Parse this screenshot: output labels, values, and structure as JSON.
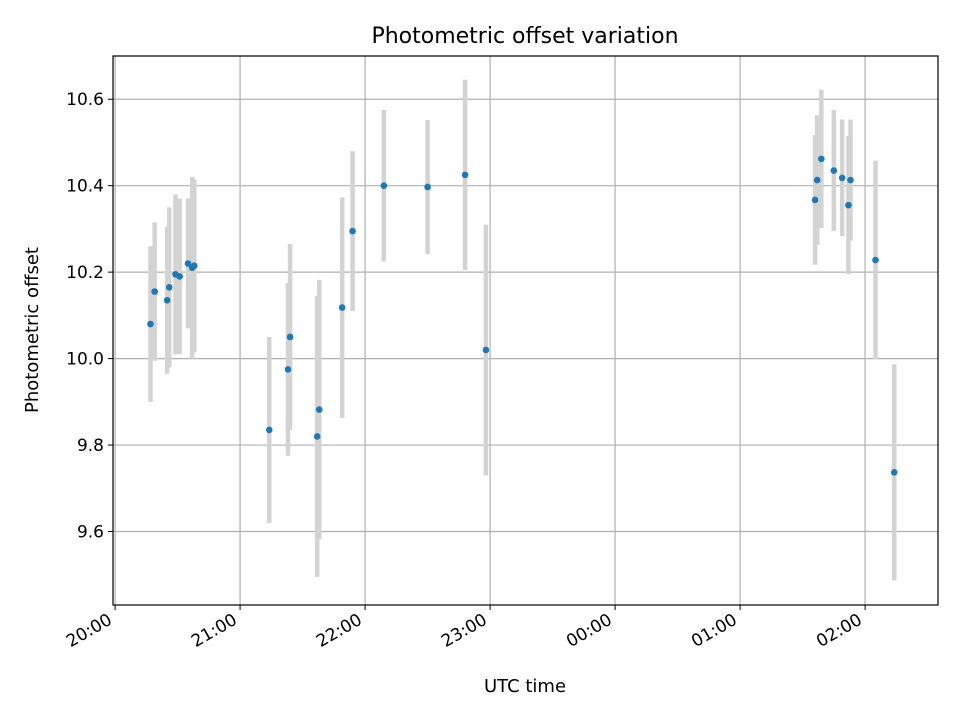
{
  "chart_data": {
    "type": "scatter",
    "title": "Photometric offset variation",
    "xlabel": "UTC time",
    "ylabel": "Photometric offset",
    "x_tick_labels": [
      "20:00",
      "21:00",
      "22:00",
      "23:00",
      "00:00",
      "01:00",
      "02:00"
    ],
    "y_tick_labels": [
      "9.6",
      "9.8",
      "10.0",
      "10.2",
      "10.4",
      "10.6"
    ],
    "xlim": [
      "19:59",
      "02:35"
    ],
    "ylim": [
      9.43,
      10.7
    ],
    "grid": true,
    "point_color": "#1f77b4",
    "errorbar_color": "#d3d3d3",
    "series": [
      {
        "points": [
          {
            "x": "20:17",
            "y": 10.08,
            "err": 0.18
          },
          {
            "x": "20:19",
            "y": 10.155,
            "err": 0.16
          },
          {
            "x": "20:25",
            "y": 10.135,
            "err": 0.17
          },
          {
            "x": "20:26",
            "y": 10.165,
            "err": 0.185
          },
          {
            "x": "20:29",
            "y": 10.195,
            "err": 0.185
          },
          {
            "x": "20:31",
            "y": 10.19,
            "err": 0.18
          },
          {
            "x": "20:35",
            "y": 10.22,
            "err": 0.15
          },
          {
            "x": "20:37",
            "y": 10.21,
            "err": 0.21
          },
          {
            "x": "20:38",
            "y": 10.215,
            "err": 0.2
          },
          {
            "x": "21:14",
            "y": 9.835,
            "err": 0.215
          },
          {
            "x": "21:23",
            "y": 9.975,
            "err": 0.2
          },
          {
            "x": "21:24",
            "y": 10.05,
            "err": 0.215
          },
          {
            "x": "21:37",
            "y": 9.82,
            "err": 0.325
          },
          {
            "x": "21:38",
            "y": 9.882,
            "err": 0.3
          },
          {
            "x": "21:49",
            "y": 10.118,
            "err": 0.255
          },
          {
            "x": "21:54",
            "y": 10.295,
            "err": 0.185
          },
          {
            "x": "22:09",
            "y": 10.4,
            "err": 0.175
          },
          {
            "x": "22:30",
            "y": 10.397,
            "err": 0.155
          },
          {
            "x": "22:48",
            "y": 10.425,
            "err": 0.22
          },
          {
            "x": "22:58",
            "y": 10.02,
            "err": 0.29
          },
          {
            "x": "01:36",
            "y": 10.367,
            "err": 0.15
          },
          {
            "x": "01:37",
            "y": 10.413,
            "err": 0.15
          },
          {
            "x": "01:39",
            "y": 10.462,
            "err": 0.16
          },
          {
            "x": "01:45",
            "y": 10.435,
            "err": 0.14
          },
          {
            "x": "01:49",
            "y": 10.418,
            "err": 0.135
          },
          {
            "x": "01:52",
            "y": 10.355,
            "err": 0.16
          },
          {
            "x": "01:53",
            "y": 10.413,
            "err": 0.14
          },
          {
            "x": "02:05",
            "y": 10.228,
            "err": 0.23
          },
          {
            "x": "02:14",
            "y": 9.737,
            "err": 0.25
          }
        ]
      }
    ]
  }
}
